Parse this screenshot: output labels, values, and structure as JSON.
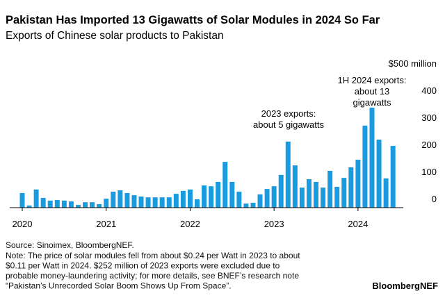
{
  "chart_data": {
    "type": "bar",
    "title": "Pakistan Has Imported 13 Gigawatts of Solar Modules in 2024 So Far",
    "subtitle": "Exports of Chinese solar products to Pakistan",
    "categories": [
      "2020",
      null,
      null,
      null,
      null,
      null,
      null,
      null,
      null,
      null,
      null,
      null,
      "2021",
      null,
      null,
      null,
      null,
      null,
      null,
      null,
      null,
      null,
      null,
      null,
      "2022",
      null,
      null,
      null,
      null,
      null,
      null,
      null,
      null,
      null,
      null,
      null,
      "2023",
      null,
      null,
      null,
      null,
      null,
      null,
      null,
      null,
      null,
      null,
      null,
      "2024",
      null,
      null,
      null,
      null,
      null
    ],
    "values": [
      54,
      8,
      67,
      36,
      26,
      28,
      26,
      23,
      10,
      20,
      20,
      13,
      33,
      59,
      64,
      54,
      46,
      41,
      38,
      38,
      38,
      38,
      51,
      62,
      67,
      31,
      82,
      79,
      95,
      169,
      95,
      59,
      15,
      18,
      49,
      69,
      79,
      121,
      244,
      156,
      74,
      105,
      95,
      74,
      136,
      77,
      110,
      149,
      177,
      303,
      369,
      251,
      108,
      228
    ],
    "color": "#1a9be0",
    "ylim": [
      0,
      500
    ],
    "yticks": [
      0,
      100,
      200,
      300,
      400,
      {
        "value": 500,
        "label": "$500 million"
      }
    ],
    "annotations": [
      {
        "lines": [
          "2023 exports:",
          "about 5 gigawatts"
        ]
      },
      {
        "lines": [
          "1H 2024 exports:",
          "about 13",
          "gigawatts"
        ]
      }
    ],
    "source": "Source: Sinoimex, BloombergNEF.",
    "note": [
      "Note: The price of solar modules fell from about $0.24 per Watt in 2023 to about",
      "$0.11 per Watt in 2024. $252 million of 2023 exports were excluded due to",
      "probable money-laundering activity; for more details, see BNEF’s research note",
      "“Pakistan’s Unrecorded Solar Boom Shows Up From Space”."
    ],
    "brand": "BloombergNEF"
  }
}
